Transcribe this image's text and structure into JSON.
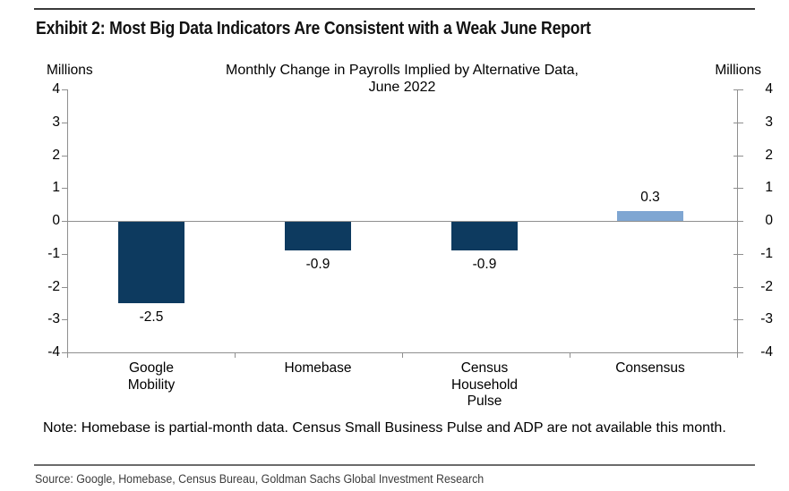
{
  "exhibit": {
    "title": "Exhibit 2: Most Big Data Indicators Are Consistent with a Weak June Report"
  },
  "chart": {
    "title_line1": "Monthly Change in Payrolls Implied by Alternative Data,",
    "title_line2": "June 2022",
    "left_axis_unit": "Millions",
    "right_axis_unit": "Millions"
  },
  "chart_data": {
    "type": "bar",
    "title": "Monthly Change in Payrolls Implied by Alternative Data, June 2022",
    "categories": [
      "Google Mobility",
      "Homebase",
      "Census Household Pulse",
      "Consensus"
    ],
    "category_lines": [
      [
        "Google",
        "Mobility"
      ],
      [
        "Homebase"
      ],
      [
        "Census",
        "Household",
        "Pulse"
      ],
      [
        "Consensus"
      ]
    ],
    "values": [
      -2.5,
      -0.9,
      -0.9,
      0.3
    ],
    "value_labels": [
      "-2.5",
      "-0.9",
      "-0.9",
      "0.3"
    ],
    "bar_colors": [
      "#0d3a5f",
      "#0d3a5f",
      "#0d3a5f",
      "#7fa6d2"
    ],
    "xlabel": "",
    "ylabel": "Millions",
    "ylim": [
      -4,
      4
    ],
    "yticks": [
      4,
      3,
      2,
      1,
      0,
      -1,
      -2,
      -3,
      -4
    ],
    "grid": false,
    "legend": false,
    "colors": {
      "dark_bar": "#0d3a5f",
      "light_bar": "#7fa6d2",
      "axis": "#8f8f8f"
    }
  },
  "note": "Note: Homebase is partial-month data. Census Small Business Pulse and ADP are not available this month.",
  "source": "Source: Google, Homebase, Census Bureau, Goldman Sachs Global Investment Research"
}
